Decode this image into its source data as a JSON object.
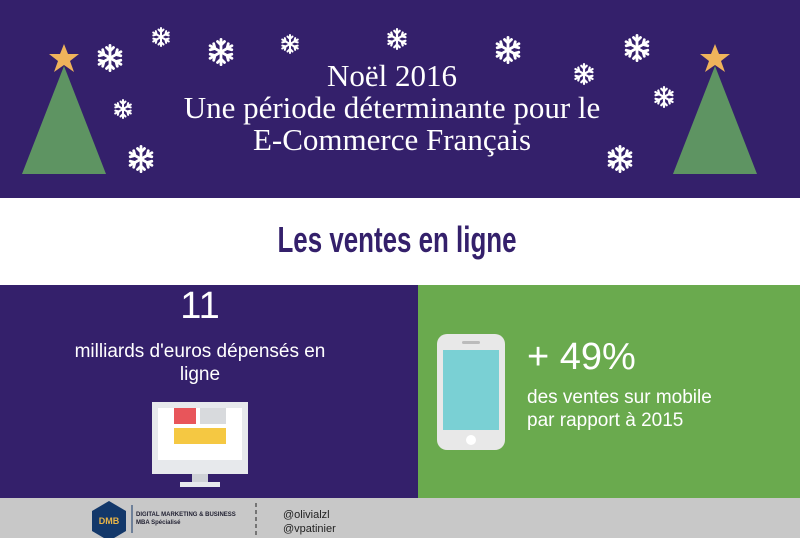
{
  "header": {
    "title": [
      "Noël 2016",
      "Une période déterminante pour le",
      "E-Commerce Français"
    ]
  },
  "section": {
    "title": "Les ventes en ligne"
  },
  "stats": [
    {
      "value": "11",
      "label": [
        "milliards d'euros dépensés en",
        "ligne"
      ]
    },
    {
      "value": "+ 49%",
      "label": [
        "des ventes sur mobile",
        "par rapport à 2015"
      ]
    }
  ],
  "footer": {
    "logo": "DMB",
    "org": [
      "DIGITAL MARKETING & BUSINESS",
      "MBA Spécialisé"
    ],
    "authors": [
      "@olivialzl",
      "@vpatinier"
    ]
  }
}
